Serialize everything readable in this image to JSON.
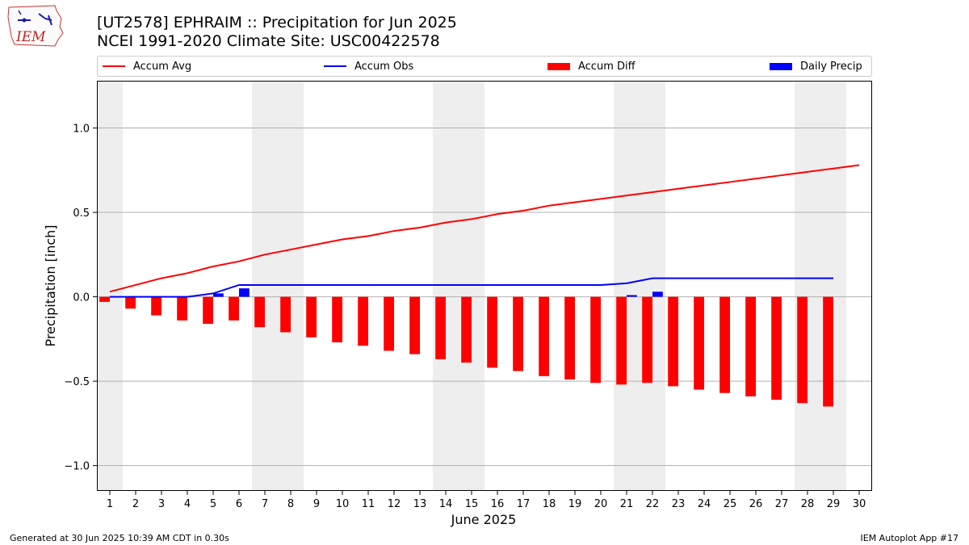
{
  "header": {
    "title_line1": "[UT2578] EPHRAIM :: Precipitation for Jun 2025",
    "title_line2": "NCEI 1991-2020 Climate Site: USC00422578"
  },
  "logo": {
    "text": "IEM",
    "icon": "iem-iowa-logo"
  },
  "legend": [
    {
      "label": "Accum Avg",
      "kind": "line",
      "color": "#ff0000"
    },
    {
      "label": "Accum Obs",
      "kind": "line",
      "color": "#0000ff"
    },
    {
      "label": "Accum Diff",
      "kind": "patch",
      "color": "#ff0000"
    },
    {
      "label": "Daily Precip",
      "kind": "patch",
      "color": "#0000ff"
    }
  ],
  "footer": {
    "left": "Generated at 30 Jun 2025 10:39 AM CDT in 0.30s",
    "right": "IEM Autoplot App #17"
  },
  "chart_data": {
    "type": "bar",
    "xlabel": "June 2025",
    "ylabel": "Precipitation [inch]",
    "ylim": [
      -1.15,
      1.28
    ],
    "yticks": [
      -1.0,
      -0.5,
      0.0,
      0.5,
      1.0
    ],
    "ytick_labels": [
      "−1.0",
      "−0.5",
      "0.0",
      "0.5",
      "1.0"
    ],
    "grid": true,
    "legend_position": "top",
    "weekend_shading_days": [
      1,
      7,
      8,
      14,
      15,
      21,
      22,
      28,
      29
    ],
    "days": [
      1,
      2,
      3,
      4,
      5,
      6,
      7,
      8,
      9,
      10,
      11,
      12,
      13,
      14,
      15,
      16,
      17,
      18,
      19,
      20,
      21,
      22,
      23,
      24,
      25,
      26,
      27,
      28,
      29,
      30
    ],
    "accum_avg": [
      0.03,
      0.07,
      0.11,
      0.14,
      0.18,
      0.21,
      0.25,
      0.28,
      0.31,
      0.34,
      0.36,
      0.39,
      0.41,
      0.44,
      0.46,
      0.49,
      0.51,
      0.54,
      0.56,
      0.58,
      0.6,
      0.62,
      0.64,
      0.66,
      0.68,
      0.7,
      0.72,
      0.74,
      0.76,
      0.78
    ],
    "accum_obs": [
      0,
      0,
      0,
      0,
      0.02,
      0.07,
      0.07,
      0.07,
      0.07,
      0.07,
      0.07,
      0.07,
      0.07,
      0.07,
      0.07,
      0.07,
      0.07,
      0.07,
      0.07,
      0.07,
      0.08,
      0.11,
      0.11,
      0.11,
      0.11,
      0.11,
      0.11,
      0.11,
      0.11
    ],
    "accum_diff": [
      -0.03,
      -0.07,
      -0.11,
      -0.14,
      -0.16,
      -0.14,
      -0.18,
      -0.21,
      -0.24,
      -0.27,
      -0.29,
      -0.32,
      -0.34,
      -0.37,
      -0.39,
      -0.42,
      -0.44,
      -0.47,
      -0.49,
      -0.51,
      -0.52,
      -0.51,
      -0.53,
      -0.55,
      -0.57,
      -0.59,
      -0.61,
      -0.63,
      -0.65
    ],
    "daily_precip": [
      0,
      0,
      0,
      0,
      0.02,
      0.05,
      0,
      0,
      0,
      0,
      0,
      0,
      0,
      0,
      0,
      0,
      0,
      0,
      0,
      0,
      0.01,
      0.03,
      0,
      0,
      0,
      0,
      0,
      0,
      0
    ]
  }
}
